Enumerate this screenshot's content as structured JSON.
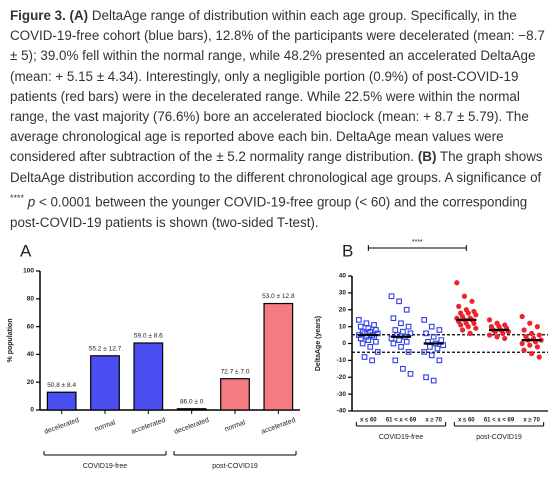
{
  "caption": [
    "Figure 3.",
    "(A)",
    " DeltaAge range of distribution within each age group. Specifically, in the COVID-19-free cohort (blue bars), 12.8% of the participants were decelerated (mean: −8.7 ± 5); 39.0% fell within the normal range, while 48.2% presented an accelerated DeltaAge (mean: + 5.15 ± 4.34). Interestingly, only a negligible portion (0.9%) of post-COVID-19 patients (red bars) were in the decelerated range. While 22.5% were within the normal range, the vast majority (76.6%) bore an accelerated bioclock (mean: + 8.7 ± 5.79). The average chronological age is reported above each bin. DeltaAge mean values were considered after subtraction of the ± 5.2 normality range distribution.",
    "(B)",
    " The graph shows DeltaAge distribution according to the different chronological age groups. A significance of",
    "****",
    "p",
    " < 0.0001 between the younger COVID-19-free group (< 60) and the corresponding post-COVID-19 patients is shown (two-sided T-test)."
  ],
  "chart_data": [
    {
      "type": "bar",
      "title": "A",
      "y_label": "% population",
      "categories": [
        "decelerated",
        "normal",
        "accelerated",
        "decelerated",
        "normal",
        "accelerated"
      ],
      "series": [
        {
          "name": "COVID19-free",
          "color": "#4b4ff2",
          "values": [
            12.8,
            39.0,
            48.2,
            null,
            null,
            null
          ]
        },
        {
          "name": "post-COVID19",
          "color": "#f47c80",
          "values": [
            null,
            null,
            null,
            0.9,
            22.5,
            76.6
          ]
        }
      ],
      "bar_labels": [
        "50.8 ± 8.4",
        "55.2 ± 12.7",
        "59.0 ± 8.6",
        "86.0 ± 0",
        "72.7 ± 7.0",
        "53.0 ± 12.8"
      ],
      "ylim": [
        0,
        100
      ],
      "yticks": [
        0,
        20,
        40,
        60,
        80,
        100
      ]
    },
    {
      "type": "dot",
      "title": "B",
      "y_label": "DeltaAge (years)",
      "categories": [
        "x ≤ 60",
        "61 < x < 69",
        "x ≥ 70",
        "x ≤ 60",
        "61 < x < 69",
        "x ≥ 70"
      ],
      "series": [
        {
          "name": "COVID19-free",
          "color": "#2f3fe6",
          "marker": "square",
          "values": [
            [
              14,
              12,
              11,
              10,
              9,
              8,
              7,
              7,
              6,
              6,
              5,
              5,
              4,
              4,
              3,
              2,
              1,
              0,
              -2,
              -5,
              -8,
              -10
            ],
            [
              28,
              25,
              20,
              15,
              12,
              10,
              8,
              7,
              6,
              5,
              4,
              3,
              2,
              1,
              0,
              -2,
              -5,
              -10,
              -15,
              -18
            ],
            [
              14,
              10,
              8,
              6,
              4,
              2,
              1,
              0,
              -1,
              -2,
              -3,
              -5,
              -7,
              -10,
              -20,
              -22
            ]
          ],
          "means": [
            5,
            4,
            0
          ]
        },
        {
          "name": "post-COVID19",
          "color": "#f0222c",
          "marker": "circle",
          "values": [
            [
              36,
              28,
              25,
              22,
              20,
              19,
              18,
              18,
              17,
              16,
              15,
              15,
              14,
              14,
              13,
              12,
              12,
              11,
              10,
              9,
              8,
              6
            ],
            [
              14,
              12,
              11,
              10,
              10,
              9,
              8,
              8,
              7,
              7,
              6,
              5,
              4,
              3
            ],
            [
              16,
              12,
              10,
              8,
              6,
              5,
              4,
              3,
              2,
              2,
              1,
              0,
              -1,
              -2,
              -4,
              -6,
              -8
            ]
          ],
          "means": [
            14,
            8,
            2
          ]
        }
      ],
      "reference_lines": [
        5.2,
        -5.2
      ],
      "significance": "****",
      "ylim": [
        -40,
        40
      ],
      "yticks": [
        -40,
        -30,
        -20,
        -10,
        0,
        10,
        20,
        30,
        40
      ]
    }
  ]
}
